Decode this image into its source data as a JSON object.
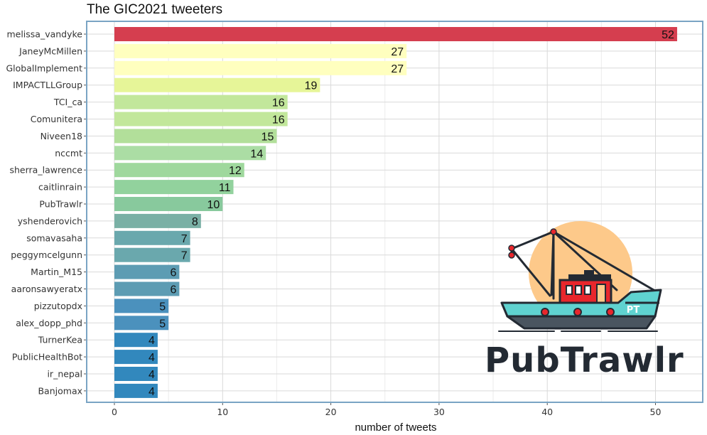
{
  "chart_data": {
    "type": "bar",
    "orientation": "horizontal",
    "title": "The GIC2021 tweeters",
    "xlabel": "number of tweets",
    "ylabel": "",
    "xlim": [
      0,
      54
    ],
    "x_ticks": [
      0,
      10,
      20,
      30,
      40,
      50
    ],
    "grid": true,
    "categories": [
      "melissa_vandyke",
      "JaneyMcMillen",
      "GlobalImplement",
      "IMPACTLLGroup",
      "TCI_ca",
      "Comunitera",
      "Niveen18",
      "nccmt",
      "sherra_lawrence",
      "caitlinrain",
      "PubTrawlr",
      "yshenderovich",
      "somavasaha",
      "peggymcelgunn",
      "Martin_M15",
      "aaronsawyeratx",
      "pizzutopdx",
      "alex_dopp_phd",
      "TurnerKea",
      "PublicHealthBot",
      "ir_nepal",
      "Banjomax"
    ],
    "values": [
      52,
      27,
      27,
      19,
      16,
      16,
      15,
      14,
      12,
      11,
      10,
      8,
      7,
      7,
      6,
      6,
      5,
      5,
      4,
      4,
      4,
      4
    ],
    "colors": [
      "#d53e4f",
      "#ffffbf",
      "#ffffbf",
      "#e6f598",
      "#c2e79b",
      "#c2e79b",
      "#b2df9a",
      "#abdda4",
      "#9fd89d",
      "#92d29d",
      "#88c99d",
      "#7ab0a5",
      "#6aa8ad",
      "#6aa8ad",
      "#5d9cb3",
      "#5d9cb3",
      "#4b91bd",
      "#4b91bd",
      "#3288bd",
      "#3288bd",
      "#3288bd",
      "#3288bd"
    ]
  },
  "logo": {
    "text": "PubTrawlr",
    "badge": "PT",
    "colors": {
      "sun": "#fdc98a",
      "hull": "#5fd2d0",
      "cabin": "#e8262c",
      "dark": "#232a33"
    }
  },
  "style": {
    "panel_border": "#7aa4c4",
    "grid": "#d9d9d9"
  }
}
